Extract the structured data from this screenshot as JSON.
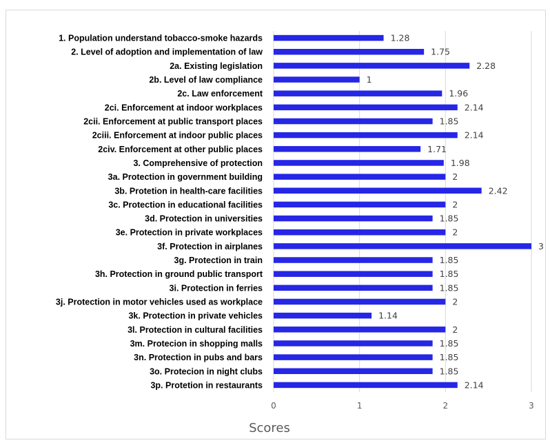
{
  "chart_data": {
    "type": "bar",
    "orientation": "horizontal",
    "title": "",
    "xlabel": "Scores",
    "ylabel": "",
    "xlim": [
      0,
      3
    ],
    "xticks": [
      "0",
      "1",
      "2",
      "3"
    ],
    "grid": true,
    "bar_color": "#2626e6",
    "categories": [
      "1. Population understand tobacco-smoke hazards",
      "2. Level of adoption and implementation of law",
      "2a. Existing legislation",
      "2b. Level of law compliance",
      "2c. Law enforcement",
      "2ci. Enforcement at indoor workplaces",
      "2cii. Enforcement at public transport places",
      "2ciii. Enforcement at indoor public places",
      "2civ. Enforcement at other public places",
      "3. Comprehensive of protection",
      "3a. Protection in government building",
      "3b. Protetion in health-care facilities",
      "3c. Protection in educational facilities",
      "3d. Protection in universities",
      "3e. Protection in private workplaces",
      "3f. Protection in airplanes",
      "3g. Protection in train",
      "3h. Protection in ground public transport",
      "3i. Protection in ferries",
      "3j. Protection in motor vehicles used as workplace",
      "3k. Protection in private vehicles",
      "3l. Protection in cultural facilities",
      "3m. Protecion in shopping malls",
      "3n. Protection in pubs and bars",
      "3o. Protecion in night clubs",
      "3p. Protetion in restaurants"
    ],
    "values": [
      1.28,
      1.75,
      2.28,
      1,
      1.96,
      2.14,
      1.85,
      2.14,
      1.71,
      1.98,
      2,
      2.42,
      2,
      1.85,
      2,
      3,
      1.85,
      1.85,
      1.85,
      2,
      1.14,
      2,
      1.85,
      1.85,
      1.85,
      2.14
    ],
    "value_labels": [
      "1.28",
      "1.75",
      "2.28",
      "1",
      "1.96",
      "2.14",
      "1.85",
      "2.14",
      "1.71",
      "1.98",
      "2",
      "2.42",
      "2",
      "1.85",
      "2",
      "3",
      "1.85",
      "1.85",
      "1.85",
      "2",
      "1.14",
      "2",
      "1.85",
      "1.85",
      "1.85",
      "2.14"
    ]
  }
}
